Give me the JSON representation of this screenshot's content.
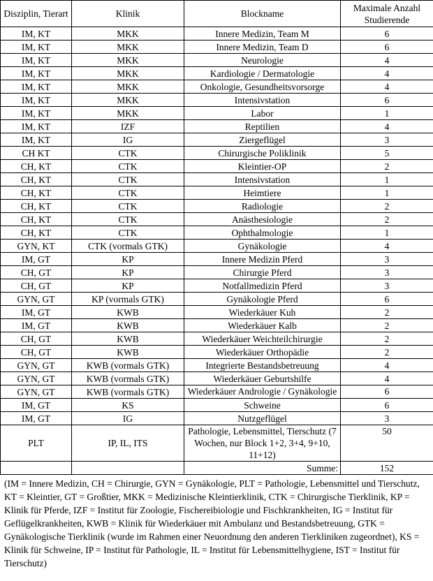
{
  "headers": [
    "Disziplin, Tierart",
    "Klinik",
    "Blockname",
    "Maximale Anzahl Studierende"
  ],
  "rows": [
    [
      "IM, KT",
      "MKK",
      "Innere Medizin, Team M",
      "6"
    ],
    [
      "IM, KT",
      "MKK",
      "Innere Medizin, Team D",
      "6"
    ],
    [
      "IM, KT",
      "MKK",
      "Neurologie",
      "4"
    ],
    [
      "IM, KT",
      "MKK",
      "Kardiologie / Dermatologie",
      "4"
    ],
    [
      "IM, KT",
      "MKK",
      "Onkologie, Gesundheitsvorsorge",
      "4"
    ],
    [
      "IM, KT",
      "MKK",
      "Intensivstation",
      "6"
    ],
    [
      "IM, KT",
      "MKK",
      "Labor",
      "1"
    ],
    [
      "IM, KT",
      "IZF",
      "Reptilien",
      "4"
    ],
    [
      "IM,  KT",
      "IG",
      "Ziergeflügel",
      "3"
    ],
    [
      "CH KT",
      "CTK",
      "Chirurgische Poliklinik",
      "5"
    ],
    [
      "CH, KT",
      "CTK",
      "Kleintier-OP",
      "2"
    ],
    [
      "CH, KT",
      "CTK",
      "Intensivstation",
      "1"
    ],
    [
      "CH, KT",
      "CTK",
      "Heimtiere",
      "1"
    ],
    [
      "CH, KT",
      "CTK",
      "Radiologie",
      "2"
    ],
    [
      "CH, KT",
      "CTK",
      "Anästhesiologie",
      "2"
    ],
    [
      "CH, KT",
      "CTK",
      "Ophthalmologie",
      "1"
    ],
    [
      "GYN, KT",
      "CTK (vormals GTK)",
      "Gynäkologie",
      "4"
    ],
    [
      "IM, GT",
      "KP",
      "Innere Medizin Pferd",
      "3"
    ],
    [
      "CH, GT",
      "KP",
      "Chirurgie Pferd",
      "3"
    ],
    [
      "CH, GT",
      "KP",
      "Notfallmedizin Pferd",
      "3"
    ],
    [
      "GYN, GT",
      "KP (vormals GTK)",
      "Gynäkologie Pferd",
      "6"
    ],
    [
      "IM, GT",
      "KWB",
      "Wiederkäuer Kuh",
      "2"
    ],
    [
      "IM, GT",
      "KWB",
      "Wiederkäuer Kalb",
      "2"
    ],
    [
      "CH, GT",
      "KWB",
      "Wiederkäuer Weichteilchirurgie",
      "2"
    ],
    [
      "CH, GT",
      "KWB",
      "Wiederkäuer Orthopädie",
      "2"
    ],
    [
      "GYN, GT",
      "KWB (vormals GTK)",
      "Integrierte Bestandsbetreuung",
      "4"
    ],
    [
      "GYN, GT",
      "KWB (vormals GTK)",
      "Wiederkäuer Geburtshilfe",
      "4"
    ],
    [
      "GYN, GT",
      "KWB (vormals GTK)",
      "Wiederkäuer Andrologie / Gynäkologie",
      "6"
    ],
    [
      "IM, GT",
      "KS",
      "Schweine",
      "6"
    ],
    [
      "IM, GT",
      "IG",
      "Nutzgeflügel",
      "3"
    ],
    [
      "PLT",
      "IP, IL, ITS",
      "Pathologie, Lebensmittel, Tierschutz (7 Wochen, nur Block 1+2, 3+4, 9+10, 11+12)",
      "50"
    ]
  ],
  "sum": {
    "label": "Summe:",
    "value": "152"
  },
  "footnote": "(IM = Innere Medizin, CH = Chirurgie, GYN = Gynäkologie, PLT = Pathologie, Lebensmittel und Tierschutz, KT = Kleintier, GT = Großtier, MKK = Medizinische Kleintierklinik, CTK = Chirurgische Tierklinik, KP = Klinik für Pferde, IZF = Institut für Zoologie, Fischereibiologie und Fischkrankheiten, IG = Institut für Geflügelkrankheiten, KWB = Klinik für Wiederkäuer mit Ambulanz und Bestandsbetreuung, GTK = Gynäkologische Tierklinik (wurde im Rahmen einer Neuordnung den anderen Tierkliniken zugeordnet), KS = Klinik für Schweine, IP = Institut für Pathologie, IL = Institut für Lebensmittelhygiene, IST = Institut für Tierschutz)"
}
